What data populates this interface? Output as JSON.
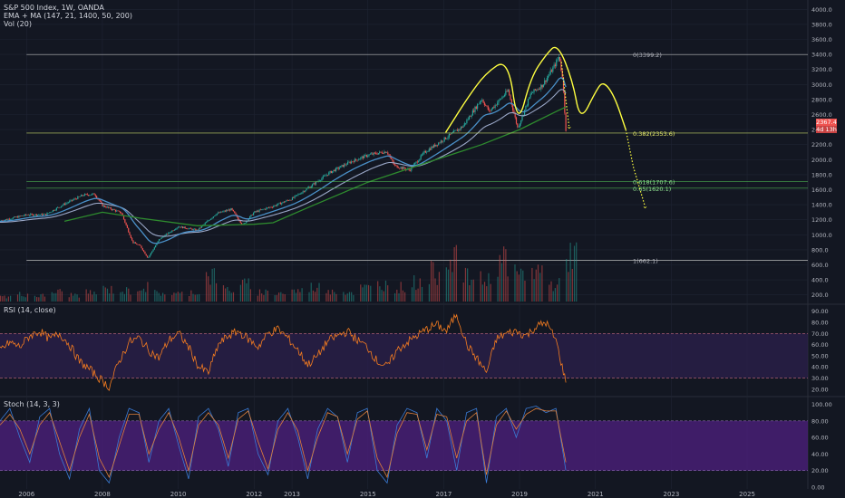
{
  "header": {
    "title": "S&P 500 Index, 1W, OANDA",
    "indicator_ema": "EMA + MA (147, 21, 1400, 50, 200)",
    "indicator_vol": "Vol (20)"
  },
  "panes": {
    "rsi_title": "RSI (14, close)",
    "stoch_title": "Stoch (14, 3, 3)"
  },
  "colors": {
    "background": "#131722",
    "grid": "#1f2433",
    "candle_up": "#26a69a",
    "candle_down": "#ef5350",
    "ema_fast": "#4a90c8",
    "ema_slow": "#9aa7c7",
    "ma_long": "#2e8b2e",
    "annotation": "#ffff40",
    "fib_line": "#b8b8b8",
    "fib_green": "#4caf50",
    "rsi_line": "#f57c20",
    "rsi_band": "#2a1f4a",
    "stoch_k": "#3a7bd5",
    "stoch_d": "#e0803a",
    "stoch_band": "#4b1f7a"
  },
  "price_tags": {
    "current": "2367.4",
    "countdown": "4d 13h"
  },
  "chart_data": [
    {
      "type": "candlestick",
      "pane": "price",
      "title": "S&P 500 Index, 1W, OANDA",
      "x_ticks": [
        "2006",
        "2008",
        "2010",
        "2012",
        "2013",
        "2015",
        "2017",
        "2019",
        "2021",
        "2023",
        "2025"
      ],
      "y_ticks": [
        "200.0",
        "400.0",
        "600.0",
        "800.0",
        "1000.0",
        "1200.0",
        "1400.0",
        "1600.0",
        "1800.0",
        "2000.0",
        "2200.0",
        "2400.0",
        "2600.0",
        "2800.0",
        "3000.0",
        "3200.0",
        "3400.0",
        "3600.0",
        "3800.0",
        "4000.0"
      ],
      "ylim": [
        100,
        4100
      ],
      "xlim": [
        2005.3,
        2026.6
      ],
      "close_series": [
        {
          "x": 2005.3,
          "y": 1185
        },
        {
          "x": 2006.0,
          "y": 1265
        },
        {
          "x": 2006.5,
          "y": 1270
        },
        {
          "x": 2007.0,
          "y": 1410
        },
        {
          "x": 2007.5,
          "y": 1530
        },
        {
          "x": 2007.8,
          "y": 1540
        },
        {
          "x": 2008.0,
          "y": 1390
        },
        {
          "x": 2008.5,
          "y": 1290
        },
        {
          "x": 2008.8,
          "y": 900
        },
        {
          "x": 2009.0,
          "y": 850
        },
        {
          "x": 2009.2,
          "y": 690
        },
        {
          "x": 2009.5,
          "y": 940
        },
        {
          "x": 2010.0,
          "y": 1110
        },
        {
          "x": 2010.5,
          "y": 1060
        },
        {
          "x": 2011.0,
          "y": 1280
        },
        {
          "x": 2011.4,
          "y": 1340
        },
        {
          "x": 2011.7,
          "y": 1130
        },
        {
          "x": 2012.0,
          "y": 1300
        },
        {
          "x": 2012.5,
          "y": 1380
        },
        {
          "x": 2013.0,
          "y": 1480
        },
        {
          "x": 2013.5,
          "y": 1650
        },
        {
          "x": 2014.0,
          "y": 1830
        },
        {
          "x": 2014.5,
          "y": 1960
        },
        {
          "x": 2015.0,
          "y": 2060
        },
        {
          "x": 2015.5,
          "y": 2110
        },
        {
          "x": 2015.7,
          "y": 1920
        },
        {
          "x": 2016.1,
          "y": 1860
        },
        {
          "x": 2016.5,
          "y": 2100
        },
        {
          "x": 2017.0,
          "y": 2270
        },
        {
          "x": 2017.5,
          "y": 2440
        },
        {
          "x": 2018.0,
          "y": 2810
        },
        {
          "x": 2018.2,
          "y": 2640
        },
        {
          "x": 2018.7,
          "y": 2920
        },
        {
          "x": 2018.95,
          "y": 2420
        },
        {
          "x": 2019.3,
          "y": 2880
        },
        {
          "x": 2019.6,
          "y": 2990
        },
        {
          "x": 2019.9,
          "y": 3230
        },
        {
          "x": 2020.05,
          "y": 3380
        },
        {
          "x": 2020.15,
          "y": 3000
        },
        {
          "x": 2020.22,
          "y": 2367
        }
      ],
      "ma_long_series": [
        {
          "x": 2007.0,
          "y": 1180
        },
        {
          "x": 2008.0,
          "y": 1300
        },
        {
          "x": 2009.0,
          "y": 1220
        },
        {
          "x": 2010.5,
          "y": 1120
        },
        {
          "x": 2012.0,
          "y": 1140
        },
        {
          "x": 2012.5,
          "y": 1160
        },
        {
          "x": 2013.5,
          "y": 1380
        },
        {
          "x": 2015.0,
          "y": 1700
        },
        {
          "x": 2016.5,
          "y": 1950
        },
        {
          "x": 2018.0,
          "y": 2200
        },
        {
          "x": 2019.0,
          "y": 2400
        },
        {
          "x": 2020.0,
          "y": 2650
        },
        {
          "x": 2020.22,
          "y": 2700
        }
      ],
      "fib_levels": [
        {
          "label": "0(3399.2)",
          "value": 3399.2,
          "x_start": 2006.0
        },
        {
          "label": "0.382(2353.6)",
          "value": 2353.6,
          "x_start": 2006.0
        },
        {
          "label": "0.618(1707.6)",
          "value": 1707.6,
          "x_start": 2006.0
        },
        {
          "label": "0.65(1620.1)",
          "value": 1620.1,
          "x_start": 2006.0
        },
        {
          "label": "1(662.1)",
          "value": 662.1,
          "x_start": 2006.0
        }
      ],
      "annotation_path": [
        {
          "x": 2017.05,
          "y": 2360
        },
        {
          "x": 2017.6,
          "y": 2800
        },
        {
          "x": 2018.1,
          "y": 3150
        },
        {
          "x": 2018.7,
          "y": 3350
        },
        {
          "x": 2018.95,
          "y": 2420
        },
        {
          "x": 2019.3,
          "y": 3100
        },
        {
          "x": 2019.7,
          "y": 3400
        },
        {
          "x": 2020.0,
          "y": 3550
        },
        {
          "x": 2020.4,
          "y": 3050
        },
        {
          "x": 2020.6,
          "y": 2500
        },
        {
          "x": 2021.0,
          "y": 2900
        },
        {
          "x": 2021.2,
          "y": 3050
        },
        {
          "x": 2021.5,
          "y": 2850
        },
        {
          "x": 2021.8,
          "y": 2400
        }
      ],
      "projection_path": [
        {
          "x": 2020.1,
          "y": 3300
        },
        {
          "x": 2020.3,
          "y": 2450
        }
      ],
      "projection_path_2": [
        {
          "x": 2021.8,
          "y": 2400
        },
        {
          "x": 2022.0,
          "y": 1900
        },
        {
          "x": 2022.3,
          "y": 1390
        }
      ]
    },
    {
      "type": "bar",
      "pane": "volume",
      "series": [
        {
          "name": "Vol (20)",
          "values": [
            0.1,
            0.15,
            0.12,
            0.2,
            0.14,
            0.18,
            0.25,
            0.22,
            0.3,
            0.18,
            0.16,
            0.2,
            0.55,
            0.25,
            0.35,
            0.2,
            0.18,
            0.22,
            0.3,
            0.25,
            0.2,
            0.28,
            0.35,
            0.3,
            0.4,
            0.6,
            1.0,
            0.5,
            0.45,
            0.9,
            0.55,
            0.65,
            0.35,
            1.0
          ]
        }
      ]
    },
    {
      "type": "line",
      "pane": "rsi",
      "title": "RSI (14, close)",
      "y_ticks": [
        "20.00",
        "30.00",
        "40.00",
        "50.00",
        "60.00",
        "70.00",
        "80.00",
        "90.00"
      ],
      "ylim": [
        15,
        93
      ],
      "bands": [
        30,
        70
      ],
      "series": [
        {
          "name": "RSI (14, close)",
          "values": [
            55,
            62,
            58,
            68,
            72,
            65,
            70,
            60,
            45,
            38,
            30,
            22,
            45,
            62,
            66,
            55,
            48,
            64,
            70,
            58,
            40,
            35,
            60,
            68,
            72,
            65,
            58,
            70,
            74,
            66,
            55,
            42,
            50,
            63,
            68,
            72,
            64,
            58,
            45,
            40,
            55,
            62,
            68,
            74,
            78,
            72,
            88,
            60,
            48,
            35,
            65,
            70,
            72,
            68,
            76,
            80,
            64,
            26
          ]
        }
      ]
    },
    {
      "type": "line",
      "pane": "stoch",
      "title": "Stoch (14, 3, 3)",
      "y_ticks": [
        "0.00",
        "20.00",
        "40.00",
        "60.00",
        "80.00",
        "100.00"
      ],
      "ylim": [
        0,
        105
      ],
      "bands": [
        20,
        80
      ],
      "series": [
        {
          "name": "K",
          "values": [
            80,
            95,
            60,
            30,
            85,
            95,
            40,
            10,
            70,
            95,
            20,
            5,
            60,
            95,
            90,
            30,
            80,
            95,
            50,
            10,
            85,
            95,
            70,
            25,
            90,
            95,
            40,
            15,
            80,
            95,
            60,
            10,
            70,
            95,
            85,
            30,
            90,
            95,
            20,
            5,
            75,
            95,
            90,
            35,
            95,
            80,
            20,
            90,
            95,
            5,
            85,
            95,
            60,
            95,
            98,
            90,
            95,
            20
          ]
        },
        {
          "name": "D",
          "values": [
            75,
            88,
            70,
            40,
            75,
            90,
            55,
            20,
            60,
            88,
            35,
            12,
            50,
            88,
            88,
            40,
            70,
            90,
            60,
            20,
            75,
            90,
            75,
            35,
            82,
            92,
            55,
            22,
            70,
            90,
            68,
            20,
            60,
            90,
            85,
            40,
            82,
            92,
            35,
            12,
            65,
            90,
            88,
            45,
            88,
            85,
            35,
            80,
            90,
            15,
            75,
            92,
            70,
            88,
            95,
            92,
            92,
            30
          ]
        }
      ]
    }
  ]
}
